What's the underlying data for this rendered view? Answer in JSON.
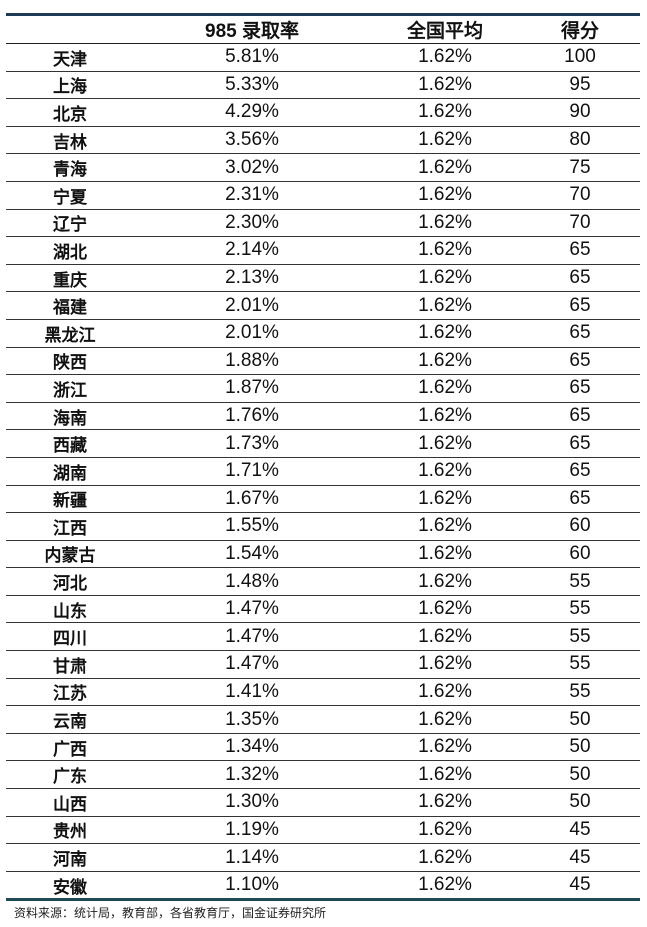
{
  "table": {
    "headers": [
      "",
      "985 录取率",
      "全国平均",
      "得分"
    ],
    "rows": [
      [
        "天津",
        "5.81%",
        "1.62%",
        "100"
      ],
      [
        "上海",
        "5.33%",
        "1.62%",
        "95"
      ],
      [
        "北京",
        "4.29%",
        "1.62%",
        "90"
      ],
      [
        "吉林",
        "3.56%",
        "1.62%",
        "80"
      ],
      [
        "青海",
        "3.02%",
        "1.62%",
        "75"
      ],
      [
        "宁夏",
        "2.31%",
        "1.62%",
        "70"
      ],
      [
        "辽宁",
        "2.30%",
        "1.62%",
        "70"
      ],
      [
        "湖北",
        "2.14%",
        "1.62%",
        "65"
      ],
      [
        "重庆",
        "2.13%",
        "1.62%",
        "65"
      ],
      [
        "福建",
        "2.01%",
        "1.62%",
        "65"
      ],
      [
        "黑龙江",
        "2.01%",
        "1.62%",
        "65"
      ],
      [
        "陕西",
        "1.88%",
        "1.62%",
        "65"
      ],
      [
        "浙江",
        "1.87%",
        "1.62%",
        "65"
      ],
      [
        "海南",
        "1.76%",
        "1.62%",
        "65"
      ],
      [
        "西藏",
        "1.73%",
        "1.62%",
        "65"
      ],
      [
        "湖南",
        "1.71%",
        "1.62%",
        "65"
      ],
      [
        "新疆",
        "1.67%",
        "1.62%",
        "65"
      ],
      [
        "江西",
        "1.55%",
        "1.62%",
        "60"
      ],
      [
        "内蒙古",
        "1.54%",
        "1.62%",
        "60"
      ],
      [
        "河北",
        "1.48%",
        "1.62%",
        "55"
      ],
      [
        "山东",
        "1.47%",
        "1.62%",
        "55"
      ],
      [
        "四川",
        "1.47%",
        "1.62%",
        "55"
      ],
      [
        "甘肃",
        "1.47%",
        "1.62%",
        "55"
      ],
      [
        "江苏",
        "1.41%",
        "1.62%",
        "55"
      ],
      [
        "云南",
        "1.35%",
        "1.62%",
        "50"
      ],
      [
        "广西",
        "1.34%",
        "1.62%",
        "50"
      ],
      [
        "广东",
        "1.32%",
        "1.62%",
        "50"
      ],
      [
        "山西",
        "1.30%",
        "1.62%",
        "50"
      ],
      [
        "贵州",
        "1.19%",
        "1.62%",
        "45"
      ],
      [
        "河南",
        "1.14%",
        "1.62%",
        "45"
      ],
      [
        "安徽",
        "1.10%",
        "1.62%",
        "45"
      ]
    ]
  },
  "source": "资料来源：统计局，教育部，各省教育厅，国金证券研究所",
  "colors": {
    "top_border": "#1f3a55",
    "bottom_border": "#1f4a55"
  }
}
